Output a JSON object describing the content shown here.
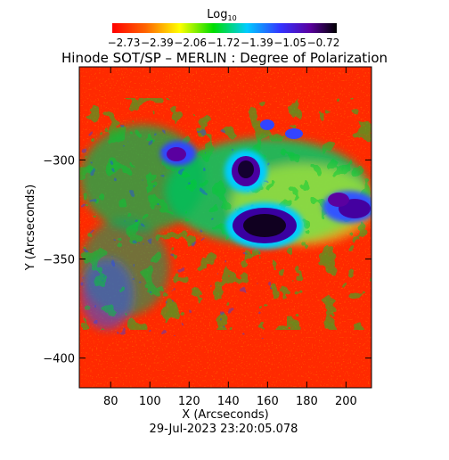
{
  "colorbar": {
    "title_main": "Log",
    "title_sub": "10",
    "tick_labels": [
      "−2.73",
      "−2.39",
      "−2.06",
      "−1.72",
      "−1.39",
      "−1.05",
      "−0.72"
    ],
    "colors": [
      "#ff0000",
      "#ff6600",
      "#ffff00",
      "#00dd00",
      "#00ccff",
      "#3333ff",
      "#5a00a0",
      "#000000"
    ]
  },
  "title": "Hinode SOT/SP – MERLIN : Degree of Polarization",
  "axes": {
    "xlabel": "X (Arcseconds)",
    "ylabel": "Y (Arcseconds)",
    "x_ticks": [
      "80",
      "100",
      "120",
      "140",
      "160",
      "180",
      "200"
    ],
    "y_ticks": [
      "−300",
      "−350",
      "−400"
    ]
  },
  "timestamp": "29-Jul-2023 23:20:05.078",
  "chart_data": {
    "type": "heatmap",
    "x_range": [
      64,
      213
    ],
    "y_range": [
      -415,
      -253
    ],
    "x_ticks": [
      80,
      100,
      120,
      140,
      160,
      180,
      200
    ],
    "y_ticks": [
      -300,
      -350,
      -400
    ],
    "colorbar_ticks": [
      -2.73,
      -2.39,
      -2.06,
      -1.72,
      -1.39,
      -1.05,
      -0.72
    ],
    "colorbar_range": [
      -2.73,
      -0.72
    ],
    "features": [
      {
        "kind": "sunspot",
        "x": 158,
        "y": -333
      },
      {
        "kind": "sunspot",
        "x": 149,
        "y": -304
      },
      {
        "kind": "sunspot",
        "x": 204,
        "y": -325
      },
      {
        "kind": "sunspot",
        "x": 196,
        "y": -316
      },
      {
        "kind": "sunspot",
        "x": 101,
        "y": -298
      }
    ]
  }
}
